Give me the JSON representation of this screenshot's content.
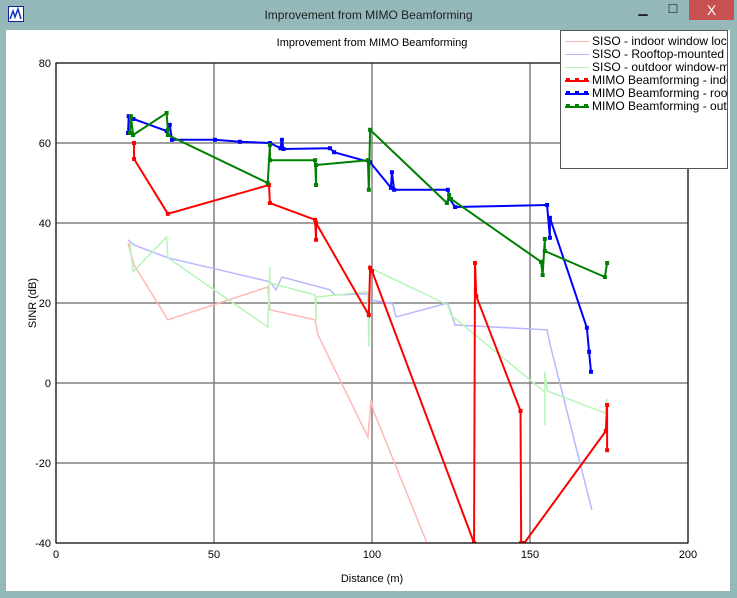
{
  "window": {
    "title": "Improvement from MIMO Beamforming",
    "minimize": "▁",
    "maximize": "☐",
    "close": "X"
  },
  "chart_data": {
    "type": "line",
    "title": "Improvement from MIMO Beamforming",
    "xlabel": "Distance (m)",
    "ylabel": "SINR (dB)",
    "xlim": [
      0,
      200
    ],
    "ylim": [
      -40,
      80
    ],
    "xticks": [
      0,
      50,
      100,
      150,
      200
    ],
    "yticks": [
      -40,
      -20,
      0,
      20,
      40,
      60,
      80
    ],
    "grid": true,
    "legend_position": "top-right",
    "series": [
      {
        "name": "SISO - indoor window location",
        "color": "#ffb8b8",
        "markers": false,
        "points": [
          [
            22.8,
            35
          ],
          [
            24.7,
            29.5
          ],
          [
            35.4,
            15.8
          ],
          [
            67,
            24
          ],
          [
            67.7,
            18.3
          ],
          [
            82,
            15.8
          ],
          [
            82.9,
            12
          ],
          [
            98.7,
            -13.5
          ],
          [
            99.7,
            -4.3
          ],
          [
            100.5,
            -7
          ],
          [
            117.4,
            -40
          ]
        ]
      },
      {
        "name": "SISO - Rooftop-mounted",
        "color": "#b8b8ff",
        "markers": false,
        "points": [
          [
            22.8,
            35.8
          ],
          [
            24.7,
            34.5
          ],
          [
            35.4,
            31.3
          ],
          [
            67.7,
            25.3
          ],
          [
            69.6,
            23.3
          ],
          [
            71.5,
            26.5
          ],
          [
            86.7,
            23.3
          ],
          [
            88.3,
            22
          ],
          [
            98.7,
            22.3
          ],
          [
            99.4,
            20.8
          ],
          [
            106.6,
            19.8
          ],
          [
            107.6,
            16.5
          ],
          [
            124,
            20
          ],
          [
            126.3,
            14.5
          ],
          [
            155.4,
            13.3
          ],
          [
            156.3,
            9.8
          ],
          [
            169.6,
            -31.8
          ]
        ]
      },
      {
        "name": "SISO - outdoor window-mounted",
        "color": "#b8f5b8",
        "markers": false,
        "points": [
          [
            23.4,
            35
          ],
          [
            24.4,
            27.8
          ],
          [
            35,
            36.5
          ],
          [
            35.4,
            31.3
          ],
          [
            67,
            14
          ],
          [
            67.7,
            29
          ],
          [
            67.7,
            25
          ],
          [
            82,
            22
          ],
          [
            82.3,
            15.8
          ],
          [
            82.3,
            21.5
          ],
          [
            98.7,
            22.8
          ],
          [
            99,
            9
          ],
          [
            99.4,
            28.8
          ],
          [
            124,
            19.5
          ],
          [
            125,
            17
          ],
          [
            154.7,
            -2.3
          ],
          [
            154.7,
            -10.5
          ],
          [
            154.7,
            2.8
          ],
          [
            155.5,
            -2
          ],
          [
            173.7,
            -7.5
          ],
          [
            174.4,
            -4
          ]
        ]
      },
      {
        "name": "MIMO Beamforming - indoor window location",
        "color": "#ff0000",
        "markers": true,
        "points": [
          [
            24.7,
            60
          ],
          [
            24.7,
            56
          ],
          [
            35.4,
            42.3
          ],
          [
            67.4,
            49.5
          ],
          [
            67.7,
            45
          ],
          [
            82,
            40.8
          ],
          [
            82.3,
            35.8
          ],
          [
            82.3,
            40
          ],
          [
            99,
            17
          ],
          [
            99.4,
            28.8
          ],
          [
            100,
            28
          ],
          [
            132.3,
            -40
          ],
          [
            132.6,
            30
          ],
          [
            133,
            21.7
          ],
          [
            147,
            -7
          ],
          [
            147.2,
            -40
          ],
          [
            148.2,
            -40
          ],
          [
            174,
            -12
          ],
          [
            174.4,
            -5.5
          ],
          [
            174.4,
            -16.8
          ]
        ]
      },
      {
        "name": "MIMO Beamforming - rooftop-mounted",
        "color": "#0000ff",
        "markers": true,
        "points": [
          [
            22.8,
            62.5
          ],
          [
            23,
            66.7
          ],
          [
            24.5,
            66
          ],
          [
            35,
            63
          ],
          [
            36,
            64.5
          ],
          [
            36.7,
            60.8
          ],
          [
            50.3,
            60.8
          ],
          [
            58.2,
            60.3
          ],
          [
            67.7,
            60
          ],
          [
            71,
            58.7
          ],
          [
            71.5,
            60.8
          ],
          [
            72,
            58.5
          ],
          [
            86.7,
            58.7
          ],
          [
            88,
            57.7
          ],
          [
            99.4,
            55.2
          ],
          [
            106,
            48.8
          ],
          [
            106.3,
            52.7
          ],
          [
            107,
            48.3
          ],
          [
            124,
            48.3
          ],
          [
            124.6,
            46
          ],
          [
            126.3,
            44
          ],
          [
            155.4,
            44.5
          ],
          [
            156.3,
            36.3
          ],
          [
            156.3,
            41.3
          ],
          [
            168,
            13.8
          ],
          [
            168.7,
            7.8
          ],
          [
            169.3,
            2.8
          ]
        ]
      },
      {
        "name": "MIMO Beamforming - outdoor window-mounted",
        "color": "#008000",
        "markers": true,
        "points": [
          [
            23.4,
            62.5
          ],
          [
            23.7,
            66.7
          ],
          [
            24.4,
            62
          ],
          [
            35,
            67.5
          ],
          [
            35.4,
            63.3
          ],
          [
            35.4,
            62
          ],
          [
            67,
            50
          ],
          [
            67.7,
            59.5
          ],
          [
            67.7,
            55.7
          ],
          [
            82,
            55.7
          ],
          [
            82.3,
            49.5
          ],
          [
            82.3,
            54.5
          ],
          [
            98.7,
            55.7
          ],
          [
            99,
            48.3
          ],
          [
            99.4,
            63.3
          ],
          [
            123.7,
            45
          ],
          [
            124.4,
            47
          ],
          [
            125,
            46
          ],
          [
            153.5,
            30.3
          ],
          [
            154,
            27
          ],
          [
            154.7,
            36
          ],
          [
            154.7,
            33
          ],
          [
            173.7,
            26.5
          ],
          [
            174.4,
            30
          ]
        ]
      }
    ]
  }
}
